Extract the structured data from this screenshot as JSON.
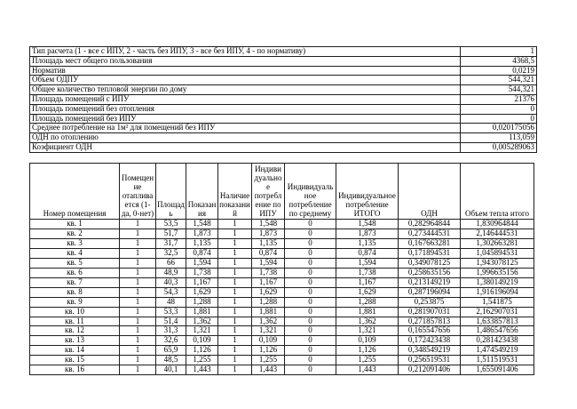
{
  "colors": {
    "background": "#ffffff",
    "border": "#1f1f1f",
    "text": "#000000"
  },
  "summary_table": {
    "rows": [
      {
        "label": "Тип расчета (1 - все с ИПУ, 2 - часть без ИПУ, 3 - все без ИПУ, 4 - по нормативу)",
        "value": "1"
      },
      {
        "label": "Площадь мест общего пользования",
        "value": "4368,5"
      },
      {
        "label": "Норматив",
        "value": "0,0219"
      },
      {
        "label": "Объем ОДПУ",
        "value": "544,321"
      },
      {
        "label": "Общее количество тепловой энергии по дому",
        "value": "544,321"
      },
      {
        "label": "Площадь помещений с ИПУ",
        "value": "21376"
      },
      {
        "label": "Площадь помещений без отопления",
        "value": "0"
      },
      {
        "label": "Площадь помещений без ИПУ",
        "value": "0"
      },
      {
        "label": "Среднее потребление на 1м² для помещений без ИПУ",
        "value": "0,020175056"
      },
      {
        "label": "ОДН по отоплению",
        "value": "113,059"
      },
      {
        "label": "Коэфициент ОДН",
        "value": "0,005289063"
      }
    ]
  },
  "apartments_table": {
    "columns": [
      "Номер помещения",
      "Помещение отапливается (1-да, 0-нет)",
      "Площадь",
      "Показания",
      "Наличие показаний",
      "Индивидуальное потребление по ИПУ",
      "Индивидуальное потребление по среднему",
      "Индивидуальное потребление ИТОГО",
      "ОДН",
      "Объем тепла итого"
    ],
    "rows": [
      [
        "кв. 1",
        "1",
        "53,5",
        "1,548",
        "1",
        "1,548",
        "0",
        "1,548",
        "0,282964844",
        "1,830964844"
      ],
      [
        "кв. 2",
        "1",
        "51,7",
        "1,873",
        "1",
        "1,873",
        "0",
        "1,873",
        "0,273444531",
        "2,146444531"
      ],
      [
        "кв. 3",
        "1",
        "31,7",
        "1,135",
        "1",
        "1,135",
        "0",
        "1,135",
        "0,167663281",
        "1,302663281"
      ],
      [
        "кв. 4",
        "1",
        "32,5",
        "0,874",
        "1",
        "0,874",
        "0",
        "0,874",
        "0,171894531",
        "1,045894531"
      ],
      [
        "кв. 5",
        "1",
        "66",
        "1,594",
        "1",
        "1,594",
        "0",
        "1,594",
        "0,349078125",
        "1,943078125"
      ],
      [
        "кв. 6",
        "1",
        "48,9",
        "1,738",
        "1",
        "1,738",
        "0",
        "1,738",
        "0,258635156",
        "1,996635156"
      ],
      [
        "кв. 7",
        "1",
        "40,3",
        "1,167",
        "1",
        "1,167",
        "0",
        "1,167",
        "0,213149219",
        "1,380149219"
      ],
      [
        "кв. 8",
        "1",
        "54,3",
        "1,629",
        "1",
        "1,629",
        "0",
        "1,629",
        "0,287196094",
        "1,916196094"
      ],
      [
        "кв. 9",
        "1",
        "48",
        "1,288",
        "1",
        "1,288",
        "0",
        "1,288",
        "0,253875",
        "1,541875"
      ],
      [
        "кв. 10",
        "1",
        "53,3",
        "1,881",
        "1",
        "1,881",
        "0",
        "1,881",
        "0,281907031",
        "2,162907031"
      ],
      [
        "кв. 11",
        "1",
        "51,4",
        "1,362",
        "1",
        "1,362",
        "0",
        "1,362",
        "0,271857813",
        "1,633857813"
      ],
      [
        "кв. 12",
        "1",
        "31,3",
        "1,321",
        "1",
        "1,321",
        "0",
        "1,321",
        "0,165547656",
        "1,486547656"
      ],
      [
        "кв. 13",
        "1",
        "32,6",
        "0,109",
        "1",
        "0,109",
        "0",
        "0,109",
        "0,172423438",
        "0,281423438"
      ],
      [
        "кв. 14",
        "1",
        "65,9",
        "1,126",
        "1",
        "1,126",
        "0",
        "1,126",
        "0,348549219",
        "1,474549219"
      ],
      [
        "кв. 15",
        "1",
        "48,5",
        "1,255",
        "1",
        "1,255",
        "0",
        "1,255",
        "0,256519531",
        "1,511519531"
      ],
      [
        "кв. 16",
        "1",
        "40,1",
        "1,443",
        "1",
        "1,443",
        "0",
        "1,443",
        "0,212091406",
        "1,655091406"
      ]
    ]
  }
}
